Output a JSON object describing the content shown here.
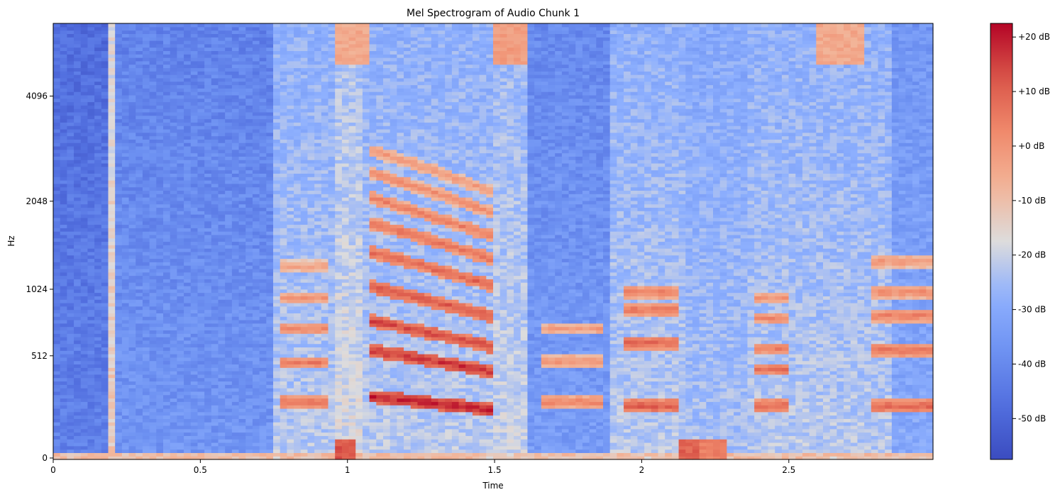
{
  "chart_data": {
    "type": "heatmap",
    "title": "Mel Spectrogram of Audio Chunk 1",
    "xlabel": "Time",
    "ylabel": "Hz",
    "xlim": [
      0,
      2.99
    ],
    "x_ticks": [
      {
        "value": 0,
        "label": "0"
      },
      {
        "value": 0.5,
        "label": "0.5"
      },
      {
        "value": 1,
        "label": "1"
      },
      {
        "value": 1.5,
        "label": "1.5"
      },
      {
        "value": 2,
        "label": "2"
      },
      {
        "value": 2.5,
        "label": "2.5"
      }
    ],
    "y_scale": "mel",
    "y_ticks": [
      {
        "value": 0,
        "label": "0"
      },
      {
        "value": 512,
        "label": "512"
      },
      {
        "value": 1024,
        "label": "1024"
      },
      {
        "value": 2048,
        "label": "2048"
      },
      {
        "value": 4096,
        "label": "4096"
      }
    ],
    "colormap": "coolwarm",
    "colorbar": {
      "range_db": [
        -57.5,
        22.5
      ],
      "ticks": [
        {
          "value": 20,
          "label": "+20 dB"
        },
        {
          "value": 10,
          "label": "+10 dB"
        },
        {
          "value": 0,
          "label": "+0 dB"
        },
        {
          "value": -10,
          "label": "-10 dB"
        },
        {
          "value": -20,
          "label": "-20 dB"
        },
        {
          "value": -30,
          "label": "-30 dB"
        },
        {
          "value": -40,
          "label": "-40 dB"
        },
        {
          "value": -50,
          "label": "-50 dB"
        }
      ]
    },
    "regions": [
      {
        "t_start": 0.0,
        "t_end": 0.18,
        "level_db": -42
      },
      {
        "t_start": 0.18,
        "t_end": 0.2,
        "level_db": -12
      },
      {
        "t_start": 0.2,
        "t_end": 0.75,
        "level_db": -36
      },
      {
        "t_start": 0.75,
        "t_end": 0.95,
        "level_db": -22
      },
      {
        "t_start": 0.95,
        "t_end": 1.05,
        "level_db": -18
      },
      {
        "t_start": 1.05,
        "t_end": 1.5,
        "level_db": -22
      },
      {
        "t_start": 1.5,
        "t_end": 1.62,
        "level_db": -20
      },
      {
        "t_start": 1.62,
        "t_end": 1.9,
        "level_db": -34
      },
      {
        "t_start": 1.9,
        "t_end": 2.15,
        "level_db": -22
      },
      {
        "t_start": 2.15,
        "t_end": 2.35,
        "level_db": -24
      },
      {
        "t_start": 2.35,
        "t_end": 2.85,
        "level_db": -22
      },
      {
        "t_start": 2.85,
        "t_end": 2.99,
        "level_db": -30
      }
    ],
    "harmonic_bands": [
      {
        "t_start": 0.76,
        "t_end": 0.94,
        "hz_start": [
          250,
          470,
          700,
          950,
          1250
        ],
        "slope": 0,
        "peak_db": 8
      },
      {
        "t_start": 1.08,
        "t_end": 1.5,
        "hz_start": [
          280,
          550,
          760,
          1050,
          1400,
          1750,
          2100,
          2500,
          2900
        ],
        "slope": -0.25,
        "peak_db": 20
      },
      {
        "t_start": 1.65,
        "t_end": 1.86,
        "hz_start": [
          250,
          480,
          700
        ],
        "slope": 0,
        "peak_db": 4
      },
      {
        "t_start": 1.95,
        "t_end": 2.12,
        "hz_start": [
          230,
          600,
          850,
          1000
        ],
        "slope": 0,
        "peak_db": 12
      },
      {
        "t_start": 2.38,
        "t_end": 2.5,
        "hz_start": [
          230,
          430,
          560,
          780,
          950
        ],
        "slope": 0,
        "peak_db": 10
      },
      {
        "t_start": 2.78,
        "t_end": 2.99,
        "hz_start": [
          230,
          550,
          800,
          1000,
          1300
        ],
        "slope": 0,
        "peak_db": 10
      }
    ],
    "low_band_bursts": [
      {
        "t_start": 0.95,
        "t_end": 1.02,
        "level_db": 12
      },
      {
        "t_start": 2.12,
        "t_end": 2.2,
        "level_db": 10
      },
      {
        "t_start": 2.2,
        "t_end": 2.3,
        "level_db": 4
      }
    ],
    "high_band_bursts": [
      {
        "t_start": 0.95,
        "t_end": 1.07,
        "level_db": -5
      },
      {
        "t_start": 1.5,
        "t_end": 1.62,
        "level_db": -2
      },
      {
        "t_start": 2.6,
        "t_end": 2.75,
        "level_db": -5
      }
    ]
  }
}
